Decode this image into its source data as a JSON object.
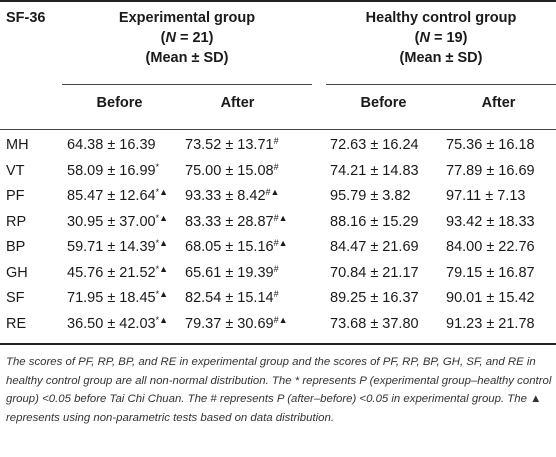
{
  "table": {
    "stub_header": "SF-36",
    "groups": [
      {
        "name": "Experimental group",
        "n_label": "N",
        "n_value": " = 21)",
        "stat": "(Mean ± SD)"
      },
      {
        "name": "Healthy control group",
        "n_label": "N",
        "n_value": " = 19)",
        "stat": "(Mean ± SD)"
      }
    ],
    "subheaders": [
      "Before",
      "After",
      "Before",
      "After"
    ],
    "rows": [
      {
        "label": "MH",
        "cells": [
          {
            "v": "64.38 ± 16.39",
            "m": ""
          },
          {
            "v": "73.52 ± 13.71",
            "m": "#"
          },
          {
            "v": "72.63 ± 16.24",
            "m": ""
          },
          {
            "v": "75.36 ± 16.18",
            "m": ""
          }
        ]
      },
      {
        "label": "VT",
        "cells": [
          {
            "v": "58.09 ± 16.99",
            "m": "*"
          },
          {
            "v": "75.00 ± 15.08",
            "m": "#"
          },
          {
            "v": "74.21 ± 14.83",
            "m": ""
          },
          {
            "v": "77.89 ± 16.69",
            "m": ""
          }
        ]
      },
      {
        "label": "PF",
        "cells": [
          {
            "v": "85.47 ± 12.64",
            "m": "*▲"
          },
          {
            "v": "93.33 ± 8.42",
            "m": "#▲"
          },
          {
            "v": "95.79 ± 3.82",
            "m": ""
          },
          {
            "v": "97.11 ± 7.13",
            "m": ""
          }
        ]
      },
      {
        "label": "RP",
        "cells": [
          {
            "v": "30.95 ± 37.00",
            "m": "*▲"
          },
          {
            "v": "83.33 ± 28.87",
            "m": "#▲"
          },
          {
            "v": "88.16 ± 15.29",
            "m": ""
          },
          {
            "v": "93.42 ± 18.33",
            "m": ""
          }
        ]
      },
      {
        "label": "BP",
        "cells": [
          {
            "v": "59.71 ± 14.39",
            "m": "*▲"
          },
          {
            "v": "68.05 ± 15.16",
            "m": "#▲"
          },
          {
            "v": "84.47 ± 21.69",
            "m": ""
          },
          {
            "v": "84.00 ± 22.76",
            "m": ""
          }
        ]
      },
      {
        "label": "GH",
        "cells": [
          {
            "v": "45.76 ± 21.52",
            "m": "*▲"
          },
          {
            "v": "65.61 ± 19.39",
            "m": "#"
          },
          {
            "v": "70.84 ± 21.17",
            "m": ""
          },
          {
            "v": "79.15 ± 16.87",
            "m": ""
          }
        ]
      },
      {
        "label": "SF",
        "cells": [
          {
            "v": "71.95 ± 18.45",
            "m": "*▲"
          },
          {
            "v": "82.54 ± 15.14",
            "m": "#"
          },
          {
            "v": "89.25 ± 16.37",
            "m": ""
          },
          {
            "v": "90.01 ± 15.42",
            "m": ""
          }
        ]
      },
      {
        "label": "RE",
        "cells": [
          {
            "v": "36.50 ± 42.03",
            "m": "*▲"
          },
          {
            "v": "79.37 ± 30.69",
            "m": "#▲"
          },
          {
            "v": "73.68 ± 37.80",
            "m": ""
          },
          {
            "v": "91.23 ± 21.78",
            "m": ""
          }
        ]
      }
    ],
    "footnote": "The scores of PF, RP, BP, and RE in experimental group and the scores of PF, RP, BP, GH, SF, and RE in healthy control group are all non-normal distribution. The * represents P (experimental group–healthy control group) <0.05 before Tai Chi Chuan. The # represents P (after–before) <0.05 in experimental group. The ▲ represents using non-parametric tests based on data distribution."
  }
}
